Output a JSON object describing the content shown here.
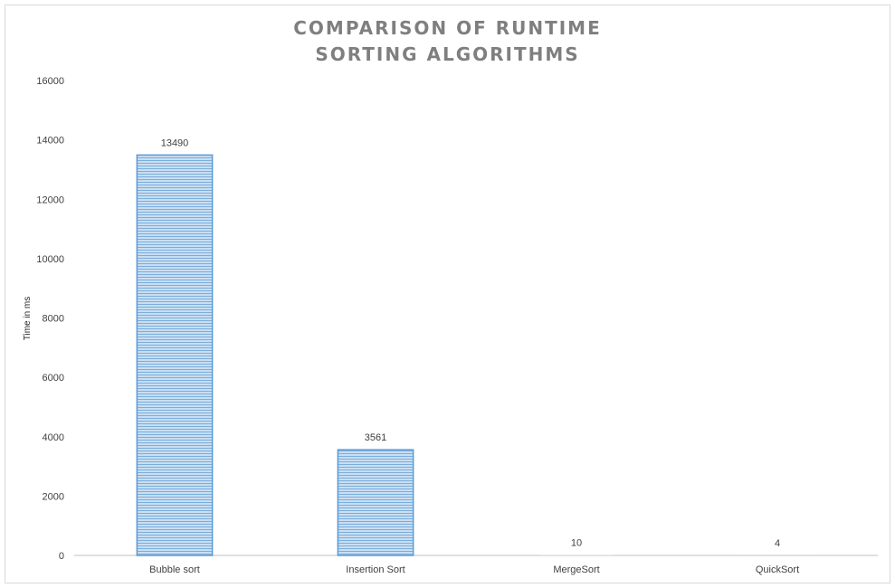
{
  "chart_data": {
    "type": "bar",
    "title_lines": [
      "COMPARISON OF RUNTIME",
      "SORTING ALGORITHMS"
    ],
    "xlabel": "",
    "ylabel": "Time in ms",
    "categories": [
      "Bubble sort",
      "Insertion Sort",
      "MergeSort",
      "QuickSort"
    ],
    "values": [
      13490,
      3561,
      10,
      4
    ],
    "data_labels": [
      "13490",
      "3561",
      "10",
      "4"
    ],
    "ylim": [
      0,
      16000
    ],
    "yticks": [
      0,
      2000,
      4000,
      6000,
      8000,
      10000,
      12000,
      14000,
      16000
    ],
    "grid": false,
    "legend": "none",
    "bar_fill_color": "#bdd7ee",
    "bar_pattern_color": "#5b9bd5",
    "axis_color": "#bfbfbf",
    "title_color": "#7f7f7f"
  }
}
